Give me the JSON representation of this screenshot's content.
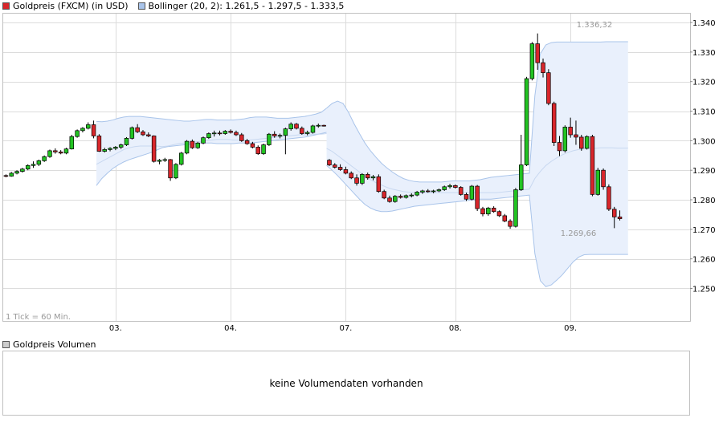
{
  "legend": {
    "price_label": "Goldpreis (FXCM) (in USD)",
    "price_color": "#d9262b",
    "bollinger_label": "Bollinger (20, 2): 1.261,5 - 1.297,5 - 1.333,5",
    "bollinger_color": "#a9c4ea"
  },
  "volume": {
    "label": "Goldpreis Volumen",
    "message": "keine Volumendaten vorhanden"
  },
  "chart_data": {
    "type": "candlestick",
    "interval_note": "1 Tick = 60 Min.",
    "y_ticks": [
      "1.340",
      "1.330",
      "1.320",
      "1.310",
      "1.300",
      "1.290",
      "1.280",
      "1.270",
      "1.260",
      "1.250"
    ],
    "y_tick_values": [
      1340,
      1330,
      1320,
      1310,
      1300,
      1290,
      1280,
      1270,
      1260,
      1250
    ],
    "ylim": [
      1239,
      1343
    ],
    "x_ticks": [
      {
        "label": "03.",
        "index": 20.5
      },
      {
        "label": "04.",
        "index": 41.5
      },
      {
        "label": "07.",
        "index": 62.5
      },
      {
        "label": "08.",
        "index": 82.5
      },
      {
        "label": "09.",
        "index": 103.5
      }
    ],
    "xlim": [
      0,
      124
    ],
    "high_label": "1.336,32",
    "low_label": "1.269,66",
    "colors": {
      "up": "#22c322",
      "down": "#d9262b",
      "band": "#e9f0fc",
      "band_line": "#a9c4ea"
    },
    "candles": [
      [
        1288.2,
        1288.6,
        1287.6,
        1288.0
      ],
      [
        1288.0,
        1289.4,
        1287.8,
        1289.0
      ],
      [
        1289.0,
        1290.0,
        1288.6,
        1289.6
      ],
      [
        1289.6,
        1290.8,
        1289.2,
        1290.4
      ],
      [
        1290.4,
        1292.0,
        1290.0,
        1291.6
      ],
      [
        1291.6,
        1293.0,
        1290.8,
        1292.0
      ],
      [
        1292.0,
        1293.6,
        1291.4,
        1293.2
      ],
      [
        1293.2,
        1295.0,
        1292.8,
        1294.6
      ],
      [
        1294.6,
        1297.0,
        1294.2,
        1296.6
      ],
      [
        1296.6,
        1297.4,
        1295.6,
        1296.2
      ],
      [
        1296.2,
        1296.8,
        1295.4,
        1295.8
      ],
      [
        1295.8,
        1297.6,
        1295.4,
        1297.2
      ],
      [
        1297.2,
        1302.0,
        1297.0,
        1301.4
      ],
      [
        1301.4,
        1303.8,
        1301.0,
        1303.4
      ],
      [
        1303.4,
        1304.6,
        1302.8,
        1304.2
      ],
      [
        1304.2,
        1306.2,
        1303.8,
        1305.4
      ],
      [
        1305.4,
        1306.8,
        1300.8,
        1301.6
      ],
      [
        1301.6,
        1302.2,
        1296.2,
        1296.4
      ],
      [
        1296.4,
        1297.6,
        1296.0,
        1297.0
      ],
      [
        1297.0,
        1297.8,
        1296.4,
        1297.4
      ],
      [
        1297.4,
        1298.2,
        1296.8,
        1297.8
      ],
      [
        1297.8,
        1299.0,
        1297.2,
        1298.6
      ],
      [
        1298.6,
        1301.2,
        1298.2,
        1300.8
      ],
      [
        1300.8,
        1304.8,
        1300.4,
        1304.4
      ],
      [
        1304.4,
        1305.6,
        1302.6,
        1303.0
      ],
      [
        1303.0,
        1303.6,
        1301.6,
        1302.0
      ],
      [
        1302.0,
        1302.8,
        1301.2,
        1301.6
      ],
      [
        1301.6,
        1301.8,
        1292.6,
        1293.0
      ],
      [
        1293.0,
        1293.8,
        1292.0,
        1293.4
      ],
      [
        1293.4,
        1294.2,
        1292.8,
        1293.6
      ],
      [
        1293.6,
        1293.8,
        1286.4,
        1287.4
      ],
      [
        1287.4,
        1292.4,
        1287.0,
        1292.0
      ],
      [
        1292.0,
        1296.2,
        1291.6,
        1295.8
      ],
      [
        1295.8,
        1300.2,
        1295.4,
        1299.8
      ],
      [
        1299.8,
        1300.4,
        1297.2,
        1297.6
      ],
      [
        1297.6,
        1299.6,
        1297.2,
        1299.2
      ],
      [
        1299.2,
        1301.4,
        1298.8,
        1301.0
      ],
      [
        1301.0,
        1302.8,
        1300.6,
        1302.4
      ],
      [
        1302.4,
        1303.4,
        1301.4,
        1302.6
      ],
      [
        1302.6,
        1303.4,
        1301.8,
        1302.4
      ],
      [
        1302.4,
        1303.6,
        1302.0,
        1303.2
      ],
      [
        1303.2,
        1303.8,
        1302.4,
        1302.8
      ],
      [
        1302.8,
        1303.4,
        1301.6,
        1302.0
      ],
      [
        1302.0,
        1302.6,
        1299.6,
        1300.0
      ],
      [
        1300.0,
        1300.6,
        1298.6,
        1299.0
      ],
      [
        1299.0,
        1299.6,
        1297.4,
        1297.8
      ],
      [
        1297.8,
        1298.4,
        1295.2,
        1295.6
      ],
      [
        1295.6,
        1299.0,
        1295.2,
        1298.6
      ],
      [
        1298.6,
        1302.6,
        1298.2,
        1302.2
      ],
      [
        1302.2,
        1303.2,
        1301.0,
        1301.6
      ],
      [
        1301.6,
        1302.4,
        1300.8,
        1301.8
      ],
      [
        1301.8,
        1304.4,
        1295.4,
        1304.0
      ],
      [
        1304.0,
        1306.2,
        1303.4,
        1305.6
      ],
      [
        1305.6,
        1306.0,
        1303.8,
        1304.2
      ],
      [
        1304.2,
        1304.8,
        1302.0,
        1302.4
      ],
      [
        1302.4,
        1303.4,
        1301.8,
        1302.8
      ],
      [
        1302.8,
        1305.4,
        1302.4,
        1305.0
      ],
      [
        1305.0,
        1305.8,
        1304.4,
        1305.2
      ],
      [
        1305.2,
        1305.4,
        1304.8,
        1305.0
      ],
      [
        1293.4,
        1293.8,
        1291.4,
        1291.8
      ],
      [
        1291.8,
        1292.4,
        1290.6,
        1291.0
      ],
      [
        1291.0,
        1292.0,
        1289.8,
        1290.2
      ],
      [
        1290.2,
        1291.2,
        1288.6,
        1289.0
      ],
      [
        1289.0,
        1289.6,
        1287.0,
        1287.4
      ],
      [
        1287.4,
        1288.6,
        1284.8,
        1285.6
      ],
      [
        1285.6,
        1289.0,
        1285.0,
        1288.6
      ],
      [
        1288.6,
        1289.2,
        1286.8,
        1287.4
      ],
      [
        1287.4,
        1288.4,
        1286.6,
        1287.8
      ],
      [
        1287.8,
        1288.6,
        1282.4,
        1282.8
      ],
      [
        1282.8,
        1283.4,
        1280.2,
        1280.6
      ],
      [
        1280.6,
        1281.4,
        1279.0,
        1279.4
      ],
      [
        1279.4,
        1281.6,
        1279.0,
        1281.2
      ],
      [
        1281.2,
        1281.8,
        1280.4,
        1280.8
      ],
      [
        1280.8,
        1281.8,
        1280.4,
        1281.4
      ],
      [
        1281.4,
        1282.2,
        1280.8,
        1281.6
      ],
      [
        1281.6,
        1283.0,
        1281.2,
        1282.6
      ],
      [
        1282.6,
        1283.4,
        1282.0,
        1283.0
      ],
      [
        1283.0,
        1283.6,
        1282.4,
        1282.8
      ],
      [
        1282.8,
        1283.4,
        1282.2,
        1283.0
      ],
      [
        1283.0,
        1283.8,
        1282.6,
        1283.4
      ],
      [
        1283.4,
        1284.8,
        1283.0,
        1284.4
      ],
      [
        1284.4,
        1285.4,
        1283.8,
        1284.8
      ],
      [
        1284.8,
        1285.2,
        1283.8,
        1284.2
      ],
      [
        1284.2,
        1284.6,
        1281.4,
        1281.8
      ],
      [
        1281.8,
        1282.4,
        1279.6,
        1280.2
      ],
      [
        1280.2,
        1285.0,
        1279.8,
        1284.6
      ],
      [
        1284.6,
        1285.0,
        1276.2,
        1277.0
      ],
      [
        1277.0,
        1277.6,
        1274.4,
        1275.2
      ],
      [
        1275.2,
        1277.6,
        1274.6,
        1277.2
      ],
      [
        1277.2,
        1277.8,
        1275.6,
        1276.0
      ],
      [
        1276.0,
        1276.4,
        1274.2,
        1274.6
      ],
      [
        1274.6,
        1275.2,
        1272.4,
        1272.8
      ],
      [
        1272.8,
        1273.4,
        1270.2,
        1271.0
      ],
      [
        1271.0,
        1284.0,
        1270.6,
        1283.4
      ],
      [
        1283.4,
        1302.0,
        1283.0,
        1291.8
      ],
      [
        1291.8,
        1321.6,
        1291.4,
        1321.0
      ],
      [
        1321.0,
        1333.4,
        1320.4,
        1332.8
      ],
      [
        1332.8,
        1336.3,
        1324.0,
        1326.4
      ],
      [
        1326.4,
        1327.8,
        1321.4,
        1323.0
      ],
      [
        1323.0,
        1324.2,
        1312.0,
        1312.6
      ],
      [
        1312.6,
        1313.2,
        1298.2,
        1299.4
      ],
      [
        1299.4,
        1301.6,
        1294.8,
        1296.6
      ],
      [
        1296.6,
        1305.2,
        1296.0,
        1304.6
      ],
      [
        1304.6,
        1307.8,
        1301.0,
        1302.0
      ],
      [
        1302.0,
        1306.8,
        1298.6,
        1301.2
      ],
      [
        1301.2,
        1302.0,
        1296.6,
        1297.4
      ],
      [
        1297.4,
        1301.8,
        1297.0,
        1301.4
      ],
      [
        1301.4,
        1302.0,
        1281.2,
        1281.8
      ],
      [
        1281.8,
        1290.8,
        1281.4,
        1290.0
      ],
      [
        1290.0,
        1290.6,
        1283.4,
        1284.4
      ],
      [
        1284.4,
        1285.2,
        1276.2,
        1276.8
      ],
      [
        1276.8,
        1277.6,
        1270.4,
        1274.2
      ],
      [
        1274.2,
        1276.4,
        1273.0,
        1273.6
      ]
    ],
    "bollinger_segments": [
      {
        "start_index": 17,
        "upper": [
          1306.5,
          1306.4,
          1306.6,
          1307.0,
          1307.6,
          1308.0,
          1308.2,
          1308.2,
          1308.2,
          1308.0,
          1307.8,
          1307.6,
          1307.4,
          1307.2,
          1307.0,
          1306.8,
          1306.6,
          1306.6,
          1306.8,
          1307.0,
          1307.2,
          1307.2,
          1307.0,
          1307.0,
          1307.0,
          1307.0,
          1307.2,
          1307.4,
          1307.8,
          1308.0,
          1308.0,
          1308.0,
          1307.8,
          1307.6,
          1307.6,
          1307.6,
          1307.8,
          1308.0,
          1308.2,
          1308.6,
          1309.0,
          1309.6,
          1311.0
        ],
        "middle": [
          1292.0,
          1293.0,
          1294.0,
          1295.0,
          1296.0,
          1297.0,
          1297.6,
          1298.0,
          1298.2,
          1298.2,
          1298.2,
          1298.2,
          1298.0,
          1298.2,
          1298.6,
          1299.0,
          1299.2,
          1299.4,
          1299.6,
          1299.8,
          1300.0,
          1300.2,
          1300.4,
          1300.4,
          1300.4,
          1300.2,
          1300.2,
          1300.2,
          1300.2,
          1300.4,
          1300.6,
          1300.8,
          1301.0,
          1301.2,
          1301.4,
          1301.6,
          1301.8,
          1302.0,
          1302.0,
          1302.2,
          1302.2,
          1302.2,
          1302.4
        ],
        "lower": [
          1284.8,
          1287.2,
          1289.0,
          1290.6,
          1291.8,
          1292.8,
          1293.6,
          1294.2,
          1294.8,
          1295.4,
          1296.0,
          1296.8,
          1297.6,
          1298.0,
          1298.2,
          1298.4,
          1298.6,
          1298.8,
          1299.0,
          1299.2,
          1299.2,
          1299.2,
          1299.0,
          1299.0,
          1299.0,
          1299.0,
          1299.2,
          1299.2,
          1299.2,
          1299.4,
          1299.6,
          1299.8,
          1300.0,
          1300.2,
          1300.4,
          1300.6,
          1300.8,
          1301.0,
          1301.2,
          1301.6,
          1302.0,
          1302.4,
          1302.8
        ]
      },
      {
        "start_index": 59,
        "upper": [
          1311.0,
          1312.6,
          1313.4,
          1312.6,
          1309.6,
          1305.8,
          1302.4,
          1299.2,
          1296.6,
          1294.4,
          1292.4,
          1290.8,
          1289.4,
          1288.2,
          1287.2,
          1286.6,
          1286.2,
          1286.0,
          1286.0,
          1286.0,
          1286.0,
          1286.0,
          1286.2,
          1286.4,
          1286.4,
          1286.4,
          1286.4,
          1286.6,
          1286.8,
          1287.2,
          1287.6,
          1287.8,
          1288.0,
          1288.2,
          1288.4,
          1288.6,
          1288.8,
          1289.0,
          1315.2,
          1329.4,
          1332.4,
          1333.2,
          1333.4,
          1333.4,
          1333.4,
          1333.4,
          1333.4,
          1333.4,
          1333.4,
          1333.4,
          1333.4,
          1333.5,
          1333.5,
          1333.5,
          1333.5,
          1333.5
        ],
        "middle": [
          1297.4,
          1296.4,
          1295.0,
          1293.6,
          1292.2,
          1290.8,
          1289.4,
          1288.0,
          1286.8,
          1285.8,
          1285.0,
          1284.2,
          1283.6,
          1283.2,
          1282.8,
          1282.6,
          1282.4,
          1282.4,
          1282.4,
          1282.4,
          1282.4,
          1282.4,
          1282.4,
          1282.4,
          1282.4,
          1282.4,
          1282.4,
          1282.4,
          1282.4,
          1282.4,
          1282.4,
          1282.4,
          1282.6,
          1282.8,
          1283.0,
          1283.2,
          1283.4,
          1283.6,
          1287.2,
          1289.6,
          1291.6,
          1293.0,
          1294.2,
          1295.2,
          1296.0,
          1296.6,
          1297.0,
          1297.2,
          1297.4,
          1297.4,
          1297.6,
          1297.6,
          1297.6,
          1297.5,
          1297.5,
          1297.5
        ],
        "lower": [
          1291.6,
          1290.0,
          1288.2,
          1286.2,
          1284.2,
          1282.2,
          1280.2,
          1278.4,
          1277.2,
          1276.4,
          1276.0,
          1276.0,
          1276.2,
          1276.6,
          1277.0,
          1277.4,
          1277.8,
          1278.0,
          1278.2,
          1278.4,
          1278.6,
          1278.8,
          1279.0,
          1279.2,
          1279.4,
          1279.6,
          1279.8,
          1280.0,
          1280.2,
          1280.2,
          1280.2,
          1280.4,
          1280.6,
          1280.8,
          1281.0,
          1281.2,
          1281.4,
          1281.6,
          1261.8,
          1252.6,
          1250.6,
          1251.2,
          1252.8,
          1254.6,
          1256.8,
          1259.0,
          1260.6,
          1261.4,
          1261.5,
          1261.5,
          1261.5,
          1261.5,
          1261.5,
          1261.5,
          1261.5,
          1261.5
        ]
      }
    ]
  }
}
